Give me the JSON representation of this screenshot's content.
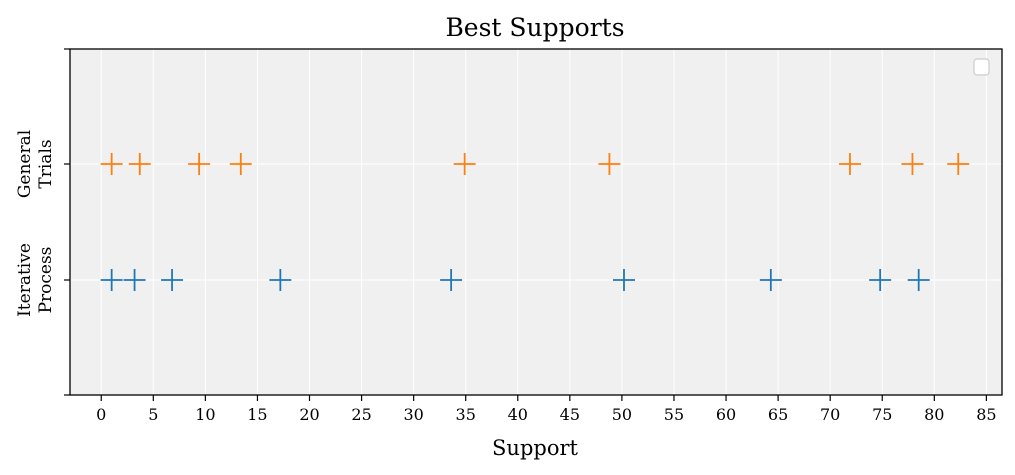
{
  "chart_data": {
    "type": "scatter",
    "title": "Best Supports",
    "xlabel": "Support",
    "ylabel": "",
    "xlim": [
      -3,
      86.5
    ],
    "x_ticks": [
      0,
      5,
      10,
      15,
      20,
      25,
      30,
      35,
      40,
      45,
      50,
      55,
      60,
      65,
      70,
      75,
      80,
      85
    ],
    "y_categories": [
      {
        "line1": "Iterative",
        "line2": "Process"
      },
      {
        "line1": "General",
        "line2": "Trials"
      }
    ],
    "grid": true,
    "legend": "top-right",
    "marker": "+",
    "series": [
      {
        "category_index": 0,
        "color": "#1f77b4",
        "x": [
          1,
          3.2,
          6.8,
          17.2,
          33.6,
          50.2,
          64.3,
          74.8,
          78.5
        ]
      },
      {
        "category_index": 1,
        "color": "#ff7f0e",
        "x": [
          1,
          3.7,
          9.4,
          13.4,
          34.9,
          48.8,
          71.9,
          77.9,
          82.3
        ]
      }
    ],
    "plot_background": "#f0f0f0",
    "grid_color": "#ffffff"
  }
}
